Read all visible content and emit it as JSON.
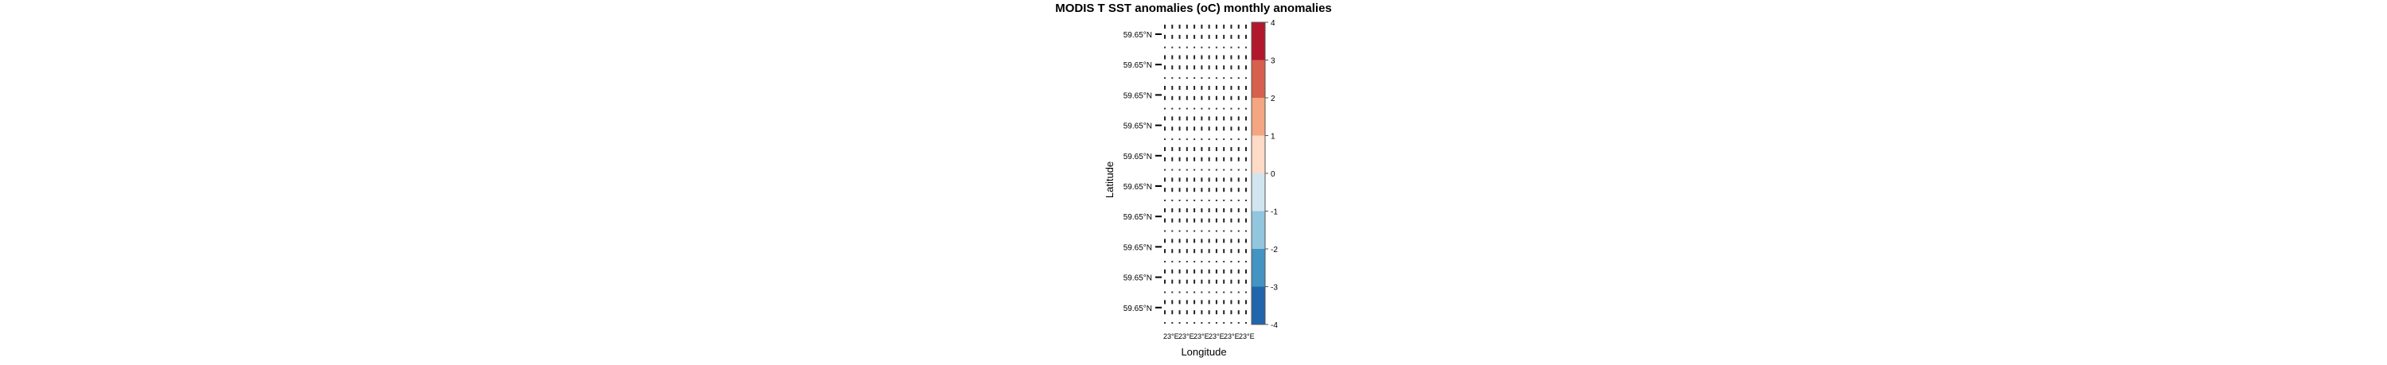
{
  "chart_data": {
    "type": "heatmap",
    "title": "MODIS T SST anomalies (oC) monthly anomalies",
    "xlabel": "Longitude",
    "ylabel": "Latitude",
    "x_tick_labels": [
      "23°E",
      "23°E",
      "23°E",
      "23°E",
      "23°E",
      "23°E"
    ],
    "y_tick_labels": [
      "59.65°N",
      "59.65°N",
      "59.65°N",
      "59.65°N",
      "59.65°N",
      "59.65°N",
      "59.65°N",
      "59.65°N",
      "59.65°N",
      "59.65°N"
    ],
    "colorbar": {
      "range": [
        -4,
        4
      ],
      "tick_labels": [
        "4",
        "3",
        "2",
        "1",
        "0",
        "-1",
        "-2",
        "-3",
        "-4"
      ],
      "bins": [
        -4,
        -3,
        -2,
        -1,
        0,
        1,
        2,
        3,
        4
      ],
      "colors": [
        "#2166ac",
        "#4393c3",
        "#92c5de",
        "#d1e5f0",
        "#fddbc7",
        "#f4a582",
        "#d6604d",
        "#b2182b"
      ]
    },
    "grid_columns": 12,
    "grid_rows": 30
  }
}
